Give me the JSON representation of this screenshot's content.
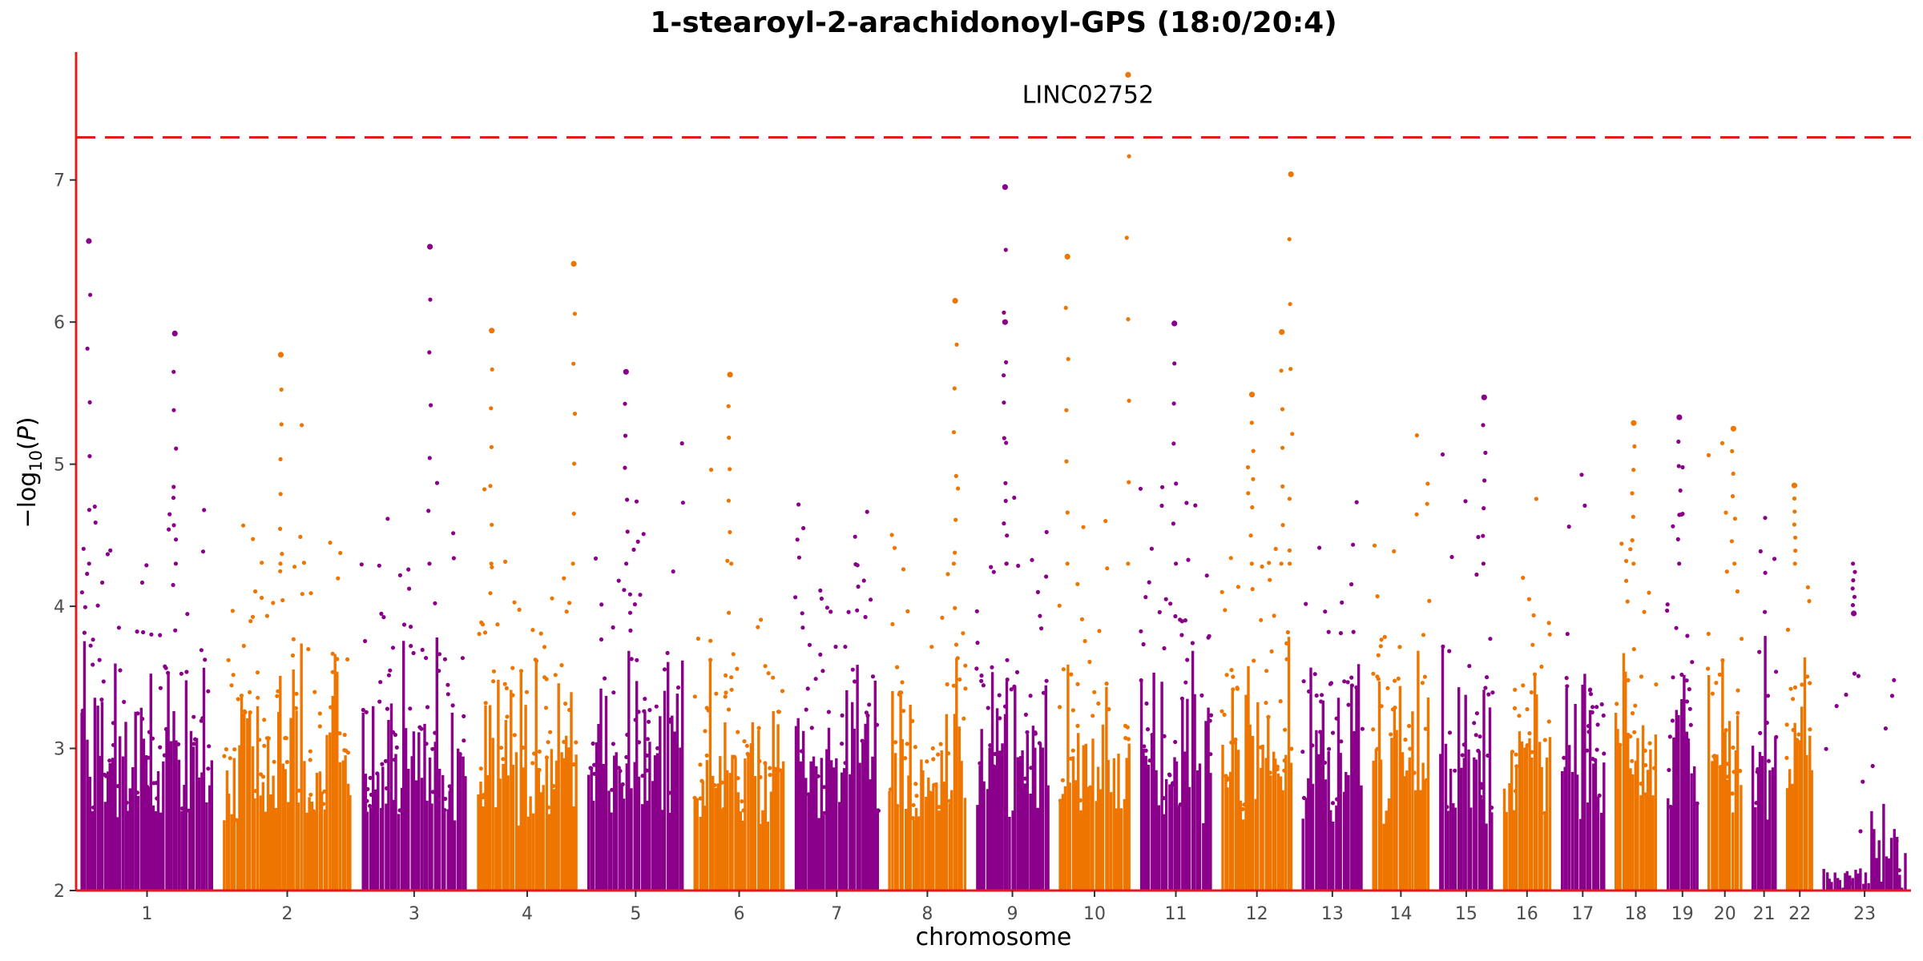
{
  "chart_data": {
    "type": "scatter",
    "title": "1-stearoyl-2-arachidonoyl-GPS (18:0/20:4)",
    "xlabel": "chromosome",
    "ylabel": "-log10(P)",
    "ylim": [
      2,
      7.9
    ],
    "yticks": [
      2,
      3,
      4,
      5,
      6,
      7
    ],
    "threshold": 7.3,
    "grid": false,
    "legend": "none",
    "colors": {
      "odd": "#8b008b",
      "even": "#ee7600",
      "axis": "#e41a1c",
      "threshold": "#e41a1c"
    },
    "chromosomes": [
      {
        "label": "1",
        "length": 248
      },
      {
        "label": "2",
        "length": 242
      },
      {
        "label": "3",
        "length": 198
      },
      {
        "label": "4",
        "length": 190
      },
      {
        "label": "5",
        "length": 181
      },
      {
        "label": "6",
        "length": 171
      },
      {
        "label": "7",
        "length": 159
      },
      {
        "label": "8",
        "length": 145
      },
      {
        "label": "9",
        "length": 138
      },
      {
        "label": "10",
        "length": 134
      },
      {
        "label": "11",
        "length": 135
      },
      {
        "label": "12",
        "length": 133
      },
      {
        "label": "13",
        "length": 114
      },
      {
        "label": "14",
        "length": 107
      },
      {
        "label": "15",
        "length": 102
      },
      {
        "label": "16",
        "length": 90
      },
      {
        "label": "17",
        "length": 83
      },
      {
        "label": "18",
        "length": 80
      },
      {
        "label": "19",
        "length": 59
      },
      {
        "label": "20",
        "length": 64
      },
      {
        "label": "21",
        "length": 47
      },
      {
        "label": "22",
        "length": 51
      },
      {
        "label": "23",
        "length": 156
      }
    ],
    "peaks": [
      {
        "chr": "1",
        "pos": 0.06,
        "y": 6.57
      },
      {
        "chr": "1",
        "pos": 0.71,
        "y": 5.92
      },
      {
        "chr": "2",
        "pos": 0.45,
        "y": 5.77
      },
      {
        "chr": "3",
        "pos": 0.65,
        "y": 6.53
      },
      {
        "chr": "4",
        "pos": 0.15,
        "y": 5.94
      },
      {
        "chr": "4",
        "pos": 0.96,
        "y": 6.41
      },
      {
        "chr": "5",
        "pos": 0.4,
        "y": 5.65
      },
      {
        "chr": "6",
        "pos": 0.4,
        "y": 5.63
      },
      {
        "chr": "8",
        "pos": 0.86,
        "y": 6.15
      },
      {
        "chr": "9",
        "pos": 0.4,
        "y": 6.95
      },
      {
        "chr": "9",
        "pos": 0.4,
        "y": 6.0
      },
      {
        "chr": "10",
        "pos": 0.12,
        "y": 6.46
      },
      {
        "chr": "10",
        "pos": 0.97,
        "y": 7.74
      },
      {
        "chr": "11",
        "pos": 0.48,
        "y": 5.99
      },
      {
        "chr": "12",
        "pos": 0.43,
        "y": 5.49
      },
      {
        "chr": "12",
        "pos": 0.85,
        "y": 5.93
      },
      {
        "chr": "12",
        "pos": 0.98,
        "y": 7.04
      },
      {
        "chr": "15",
        "pos": 0.83,
        "y": 5.47
      },
      {
        "chr": "18",
        "pos": 0.45,
        "y": 5.29
      },
      {
        "chr": "19",
        "pos": 0.4,
        "y": 5.33
      },
      {
        "chr": "20",
        "pos": 0.75,
        "y": 5.25
      },
      {
        "chr": "22",
        "pos": 0.3,
        "y": 4.85
      },
      {
        "chr": "23",
        "pos": 0.37,
        "y": 3.95
      }
    ],
    "annotations": [
      {
        "chr": "10",
        "pos": 0.97,
        "y": 7.74,
        "label": "LINC02752"
      }
    ]
  }
}
